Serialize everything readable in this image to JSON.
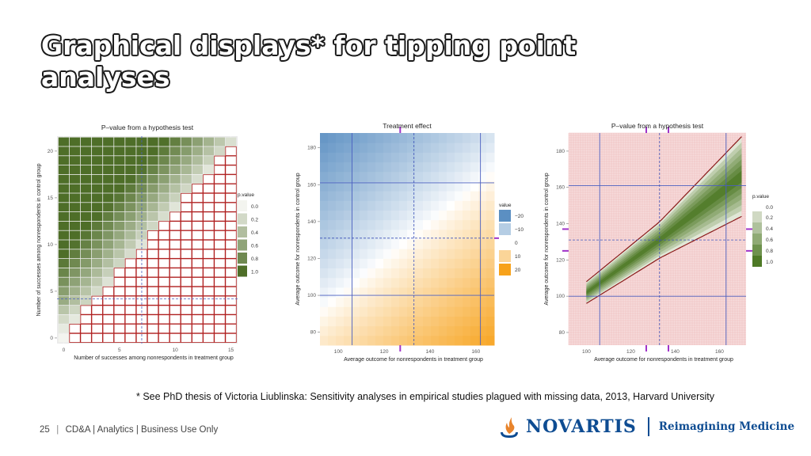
{
  "slide": {
    "title_line1": "Graphical displays* for tipping point",
    "title_line2": "analyses",
    "footnote": "* See PhD thesis of Victoria Liublinska: Sensitivity analyses in empirical studies plagued with missing data, 2013, Harvard University",
    "page_number": "25",
    "footer_text": "CD&A | Analytics | Business Use Only",
    "brand_name": "NOVARTIS",
    "brand_tagline": "Reimagining Medicine",
    "colors": {
      "brand_blue": "#0e4c92",
      "logo_orange": "#e8842c"
    }
  },
  "chart_data": [
    {
      "type": "heatmap",
      "title": "P–value from a hypothesis test",
      "xlabel": "Number of successes among nonrespondents in treatment group",
      "ylabel": "Number of successes among nonrespondents in control group",
      "x_range": [
        0,
        15
      ],
      "y_range": [
        0,
        21
      ],
      "x_ticks": [
        "0",
        "5",
        "10",
        "15"
      ],
      "y_ticks": [
        "0",
        "5",
        "10",
        "15",
        "20"
      ],
      "reference_x": 7,
      "reference_y": 4.2,
      "legend_title": "p.value",
      "legend_labels": [
        "0.0",
        "0.2",
        "0.4",
        "0.6",
        "0.8",
        "1.0"
      ],
      "legend_position": "right",
      "low_color": "#f3f4ef",
      "high_color": "#4e6e28",
      "outline_color": "#b02020",
      "grid": true
    },
    {
      "type": "heatmap",
      "title": "Treatment effect",
      "xlabel": "Average outcome for nonrespondents in treatment group",
      "ylabel": "Average outcome for nonrespondents in control group",
      "x_range": [
        92,
        168
      ],
      "y_range": [
        73,
        188
      ],
      "x_ticks": [
        "100",
        "120",
        "140",
        "160"
      ],
      "y_ticks": [
        "80",
        "100",
        "120",
        "140",
        "160",
        "180"
      ],
      "reference_x": 133,
      "reference_y": 131,
      "solid_lines_x": [
        106,
        162
      ],
      "solid_lines_y": [
        100,
        161
      ],
      "legend_title": "value",
      "legend_labels": [
        "−20",
        "−10",
        "0",
        "10",
        "20"
      ],
      "legend_position": "right",
      "negative_color": "#5b8fc2",
      "positive_color": "#f7a21b",
      "marker_color": "#a033c9",
      "grid": true
    },
    {
      "type": "heatmap",
      "title": "P–value from a hypothesis test",
      "xlabel": "Average outcome for nonrespondents in treatment group",
      "ylabel": "Average outcome for nonrespondents in control group",
      "x_range": [
        92,
        172
      ],
      "y_range": [
        73,
        190
      ],
      "x_ticks": [
        "100",
        "120",
        "140",
        "160"
      ],
      "y_ticks": [
        "80",
        "100",
        "120",
        "140",
        "160",
        "180"
      ],
      "reference_x": 133,
      "reference_y": 131,
      "solid_lines_x": [
        106,
        163
      ],
      "solid_lines_y": [
        100,
        161
      ],
      "band_center": [
        [
          100,
          102
        ],
        [
          133,
          131
        ],
        [
          170,
          166
        ]
      ],
      "band_half_width": [
        6,
        10,
        22
      ],
      "legend_title": "p.value",
      "legend_labels": [
        "0.0",
        "0.2",
        "0.4",
        "0.6",
        "0.8",
        "1.0"
      ],
      "legend_position": "right",
      "low_color": "#f6dcdc",
      "high_color": "#4e7a26",
      "boundary_color": "#8b1a1a",
      "marker_color": "#a033c9",
      "grid": true
    }
  ]
}
